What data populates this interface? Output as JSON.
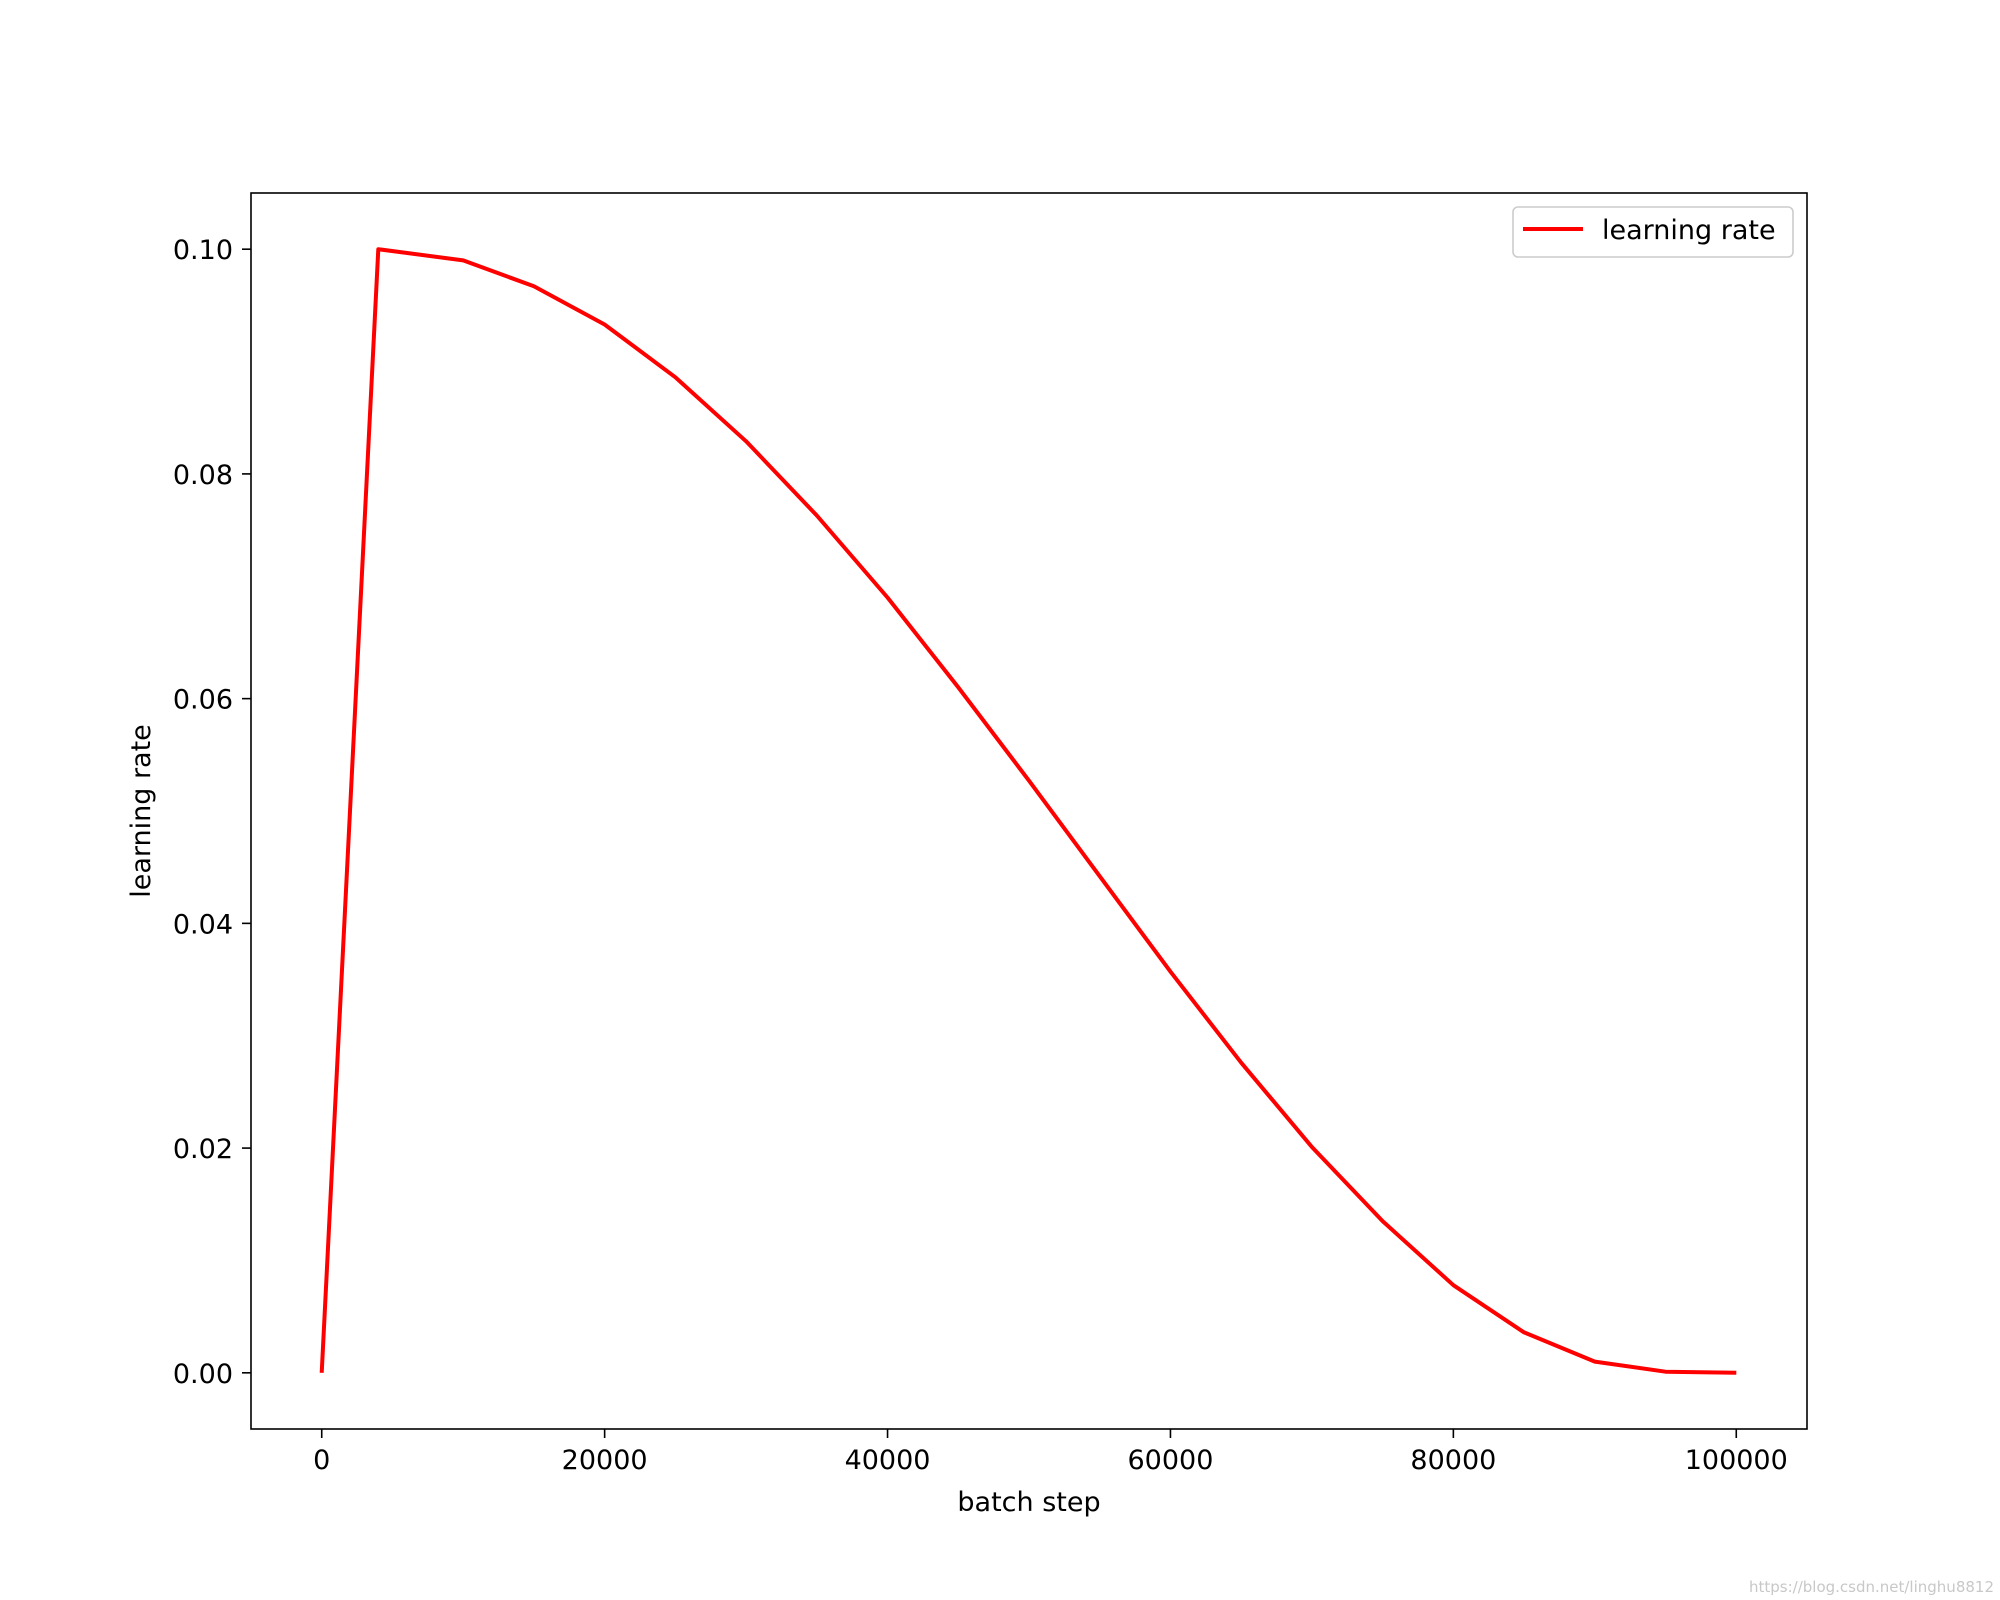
{
  "chart_data": {
    "type": "line",
    "title": "",
    "xlabel": "batch step",
    "ylabel": "learning rate",
    "xlim": [
      -5000,
      105000
    ],
    "ylim": [
      -0.005,
      0.105
    ],
    "x_ticks": [
      0,
      20000,
      40000,
      60000,
      80000,
      100000
    ],
    "x_tick_labels": [
      "0",
      "20000",
      "40000",
      "60000",
      "80000",
      "100000"
    ],
    "y_ticks": [
      0.0,
      0.02,
      0.04,
      0.06,
      0.08,
      0.1
    ],
    "y_tick_labels": [
      "0.00",
      "0.02",
      "0.04",
      "0.06",
      "0.08",
      "0.10"
    ],
    "grid": false,
    "legend_position": "top-right",
    "series": [
      {
        "name": "learning rate",
        "color": "#ff0000",
        "x": [
          0,
          4000,
          10000,
          15000,
          20000,
          25000,
          30000,
          35000,
          40000,
          45000,
          50000,
          55000,
          60000,
          65000,
          70000,
          75000,
          80000,
          85000,
          90000,
          95000,
          100000
        ],
        "y": [
          0.0,
          0.1,
          0.099,
          0.0967,
          0.0933,
          0.0886,
          0.0829,
          0.0763,
          0.069,
          0.061,
          0.0527,
          0.0442,
          0.0357,
          0.0276,
          0.0201,
          0.0135,
          0.0078,
          0.0036,
          0.001,
          0.0001,
          0.0
        ]
      }
    ]
  },
  "watermark": "https://blog.csdn.net/linghu8812"
}
